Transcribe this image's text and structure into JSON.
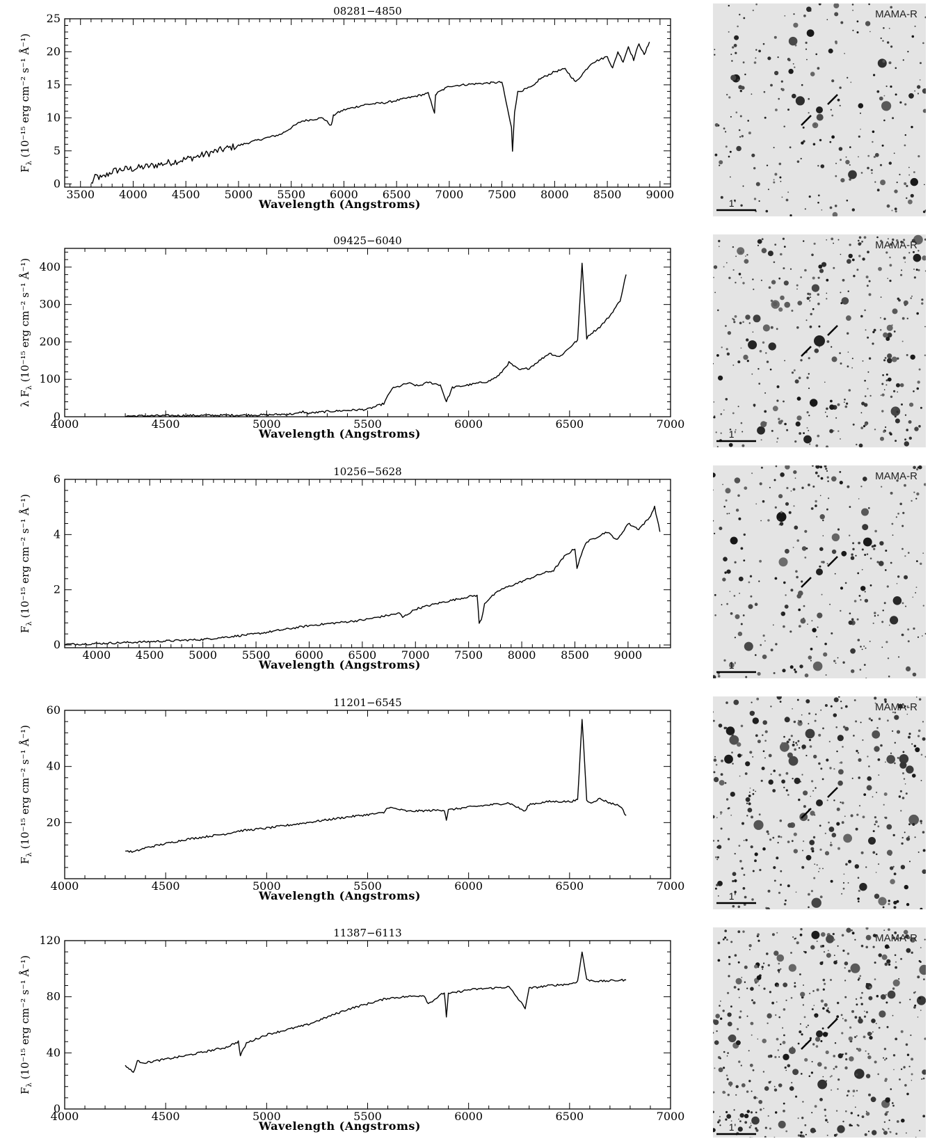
{
  "chart_data": [
    {
      "type": "line",
      "title": "08281−4850",
      "xlabel": "Wavelength (Angstroms)",
      "ylabel_prefix": "F",
      "ylabel_sub": "λ",
      "ylabel_units": "(10⁻¹⁵ erg cm⁻² s⁻¹ Å⁻¹)",
      "xlim": [
        3350,
        9100
      ],
      "ylim": [
        -0.5,
        25
      ],
      "xticks": [
        3500,
        4000,
        4500,
        5000,
        5500,
        6000,
        6500,
        7000,
        7500,
        8000,
        8500,
        9000
      ],
      "yticks": [
        0,
        5,
        10,
        15,
        20,
        25
      ],
      "series": [
        {
          "x": [
            3600,
            3650,
            3700,
            3800,
            3900,
            4000,
            4200,
            4400,
            4600,
            4800,
            5000,
            5200,
            5400,
            5600,
            5800,
            5880,
            5900,
            5920,
            6000,
            6200,
            6400,
            6550,
            6800,
            6860,
            6870,
            6880,
            7000,
            7200,
            7500,
            7590,
            7600,
            7620,
            7650,
            7700,
            7800,
            7850,
            8000,
            8100,
            8200,
            8350,
            8500,
            8550,
            8600,
            8650,
            8700,
            8750,
            8800,
            8850,
            8900
          ],
          "y": [
            0,
            1.2,
            0.8,
            1.9,
            2.2,
            2.3,
            2.8,
            3.4,
            4.1,
            5.0,
            5.8,
            6.7,
            7.5,
            9.5,
            10.0,
            8.8,
            10.3,
            10.6,
            11.2,
            12.0,
            12.3,
            12.8,
            13.7,
            10.8,
            13.4,
            13.7,
            14.8,
            15.1,
            15.4,
            8.5,
            5.0,
            11.0,
            13.9,
            14.2,
            14.8,
            15.8,
            17.0,
            17.4,
            15.4,
            18.3,
            19.3,
            17.5,
            20.0,
            18.5,
            20.8,
            18.8,
            21.3,
            19.5,
            21.5
          ]
        }
      ]
    },
    {
      "type": "line",
      "title": "09425−6040",
      "xlabel": "Wavelength (Angstroms)",
      "ylabel_prefix": "λ F",
      "ylabel_sub": "λ",
      "ylabel_units": "(10⁻¹⁵ erg cm⁻² s⁻¹ Å⁻¹)",
      "xlim": [
        4000,
        7000
      ],
      "ylim": [
        0,
        450
      ],
      "xticks": [
        4000,
        4500,
        5000,
        5500,
        6000,
        6500,
        7000
      ],
      "yticks": [
        0,
        100,
        200,
        300,
        400
      ],
      "series": [
        {
          "x": [
            4300,
            4500,
            4800,
            5000,
            5150,
            5180,
            5200,
            5300,
            5400,
            5500,
            5580,
            5620,
            5650,
            5700,
            5750,
            5800,
            5860,
            5890,
            5920,
            6000,
            6100,
            6150,
            6200,
            6250,
            6300,
            6350,
            6400,
            6450,
            6500,
            6540,
            6562,
            6585,
            6600,
            6650,
            6700,
            6750,
            6780
          ],
          "y": [
            2,
            3,
            4,
            5,
            8,
            14,
            9,
            14,
            17,
            20,
            35,
            75,
            80,
            90,
            82,
            92,
            85,
            40,
            78,
            85,
            95,
            110,
            145,
            125,
            130,
            150,
            170,
            160,
            185,
            205,
            410,
            210,
            220,
            240,
            270,
            310,
            380
          ]
        }
      ]
    },
    {
      "type": "line",
      "title": "10256−5628",
      "xlabel": "Wavelength (Angstroms)",
      "ylabel_prefix": "F",
      "ylabel_sub": "λ",
      "ylabel_units": "(10⁻¹⁵ erg cm⁻² s⁻¹ Å⁻¹)",
      "xlim": [
        3700,
        9400
      ],
      "ylim": [
        -0.1,
        6
      ],
      "xticks": [
        4000,
        4500,
        5000,
        5500,
        6000,
        6500,
        7000,
        7500,
        8000,
        8500,
        9000
      ],
      "yticks": [
        0,
        2,
        4,
        6
      ],
      "series": [
        {
          "x": [
            3700,
            4000,
            4500,
            5000,
            5500,
            6000,
            6500,
            6850,
            6880,
            7000,
            7200,
            7500,
            7580,
            7600,
            7620,
            7650,
            7700,
            7800,
            8000,
            8200,
            8300,
            8400,
            8500,
            8520,
            8600,
            8700,
            8800,
            8900,
            9000,
            9100,
            9200,
            9250,
            9300
          ],
          "y": [
            0.02,
            0.05,
            0.12,
            0.2,
            0.4,
            0.7,
            0.9,
            1.15,
            1.0,
            1.3,
            1.5,
            1.75,
            1.8,
            0.8,
            0.9,
            1.5,
            1.7,
            2.0,
            2.3,
            2.6,
            2.7,
            3.2,
            3.5,
            2.8,
            3.7,
            3.9,
            4.1,
            3.8,
            4.4,
            4.2,
            4.6,
            5.0,
            4.1
          ]
        }
      ]
    },
    {
      "type": "line",
      "title": "11201−6545",
      "xlabel": "Wavelength (Angstroms)",
      "ylabel_prefix": "F",
      "ylabel_sub": "λ",
      "ylabel_units": "(10⁻¹⁵ erg cm⁻² s⁻¹ Å⁻¹)",
      "xlim": [
        4000,
        7000
      ],
      "ylim": [
        0,
        60
      ],
      "xticks": [
        4000,
        4500,
        5000,
        5500,
        6000,
        6500,
        7000
      ],
      "yticks": [
        20,
        40,
        60
      ],
      "series": [
        {
          "x": [
            4300,
            4340,
            4400,
            4600,
            4800,
            4860,
            5000,
            5200,
            5400,
            5580,
            5600,
            5700,
            5880,
            5890,
            5900,
            6000,
            6200,
            6280,
            6300,
            6400,
            6500,
            6540,
            6562,
            6585,
            6600,
            6650,
            6700,
            6750,
            6780
          ],
          "y": [
            10,
            9.5,
            11,
            14,
            16,
            17,
            18,
            20,
            22,
            23.5,
            25.5,
            24,
            24.5,
            21,
            24.5,
            25.5,
            27,
            24,
            26.5,
            27.5,
            27.5,
            28,
            57,
            28,
            27,
            28.5,
            27,
            26,
            22.5
          ]
        }
      ]
    },
    {
      "type": "line",
      "title": "11387−6113",
      "xlabel": "Wavelength (Angstroms)",
      "ylabel_prefix": "F",
      "ylabel_sub": "λ",
      "ylabel_units": "(10⁻¹⁵ erg cm⁻² s⁻¹ Å⁻¹)",
      "xlim": [
        4000,
        7000
      ],
      "ylim": [
        0,
        120
      ],
      "xticks": [
        4000,
        4500,
        5000,
        5500,
        6000,
        6500,
        7000
      ],
      "yticks": [
        0,
        40,
        80,
        120
      ],
      "series": [
        {
          "x": [
            4300,
            4340,
            4360,
            4400,
            4600,
            4800,
            4860,
            4870,
            4900,
            5000,
            5200,
            5400,
            5600,
            5780,
            5800,
            5880,
            5890,
            5900,
            6000,
            6200,
            6280,
            6300,
            6400,
            6500,
            6540,
            6562,
            6585,
            6650,
            6780
          ],
          "y": [
            31,
            26,
            34,
            33,
            38,
            44,
            48,
            38,
            47,
            53,
            60,
            71,
            79,
            81,
            75,
            83,
            66,
            82,
            85,
            87,
            72,
            86,
            88,
            89,
            91,
            112,
            92,
            91,
            92
          ]
        }
      ]
    }
  ],
  "finders": [
    {
      "label": "MAMA-R",
      "scale": "1'"
    },
    {
      "label": "MAMA-R",
      "scale": "1'"
    },
    {
      "label": "MAMA-R",
      "scale": "1'"
    },
    {
      "label": "MAMA-R",
      "scale": "1'"
    },
    {
      "label": "MAMA-R",
      "scale": "1'"
    }
  ]
}
